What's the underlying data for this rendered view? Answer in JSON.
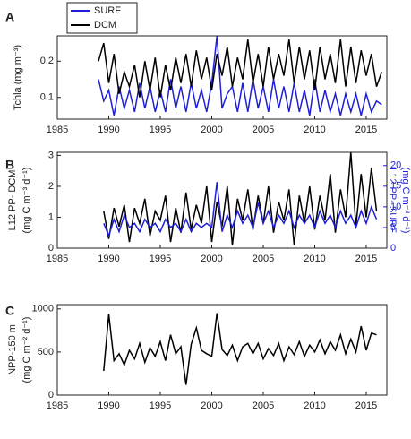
{
  "chart_data": [
    {
      "type": "line",
      "panel": "A",
      "ylabel": "Tchla (mg m⁻³)",
      "legend": "upper left",
      "x": [
        1989.0,
        1989.5,
        1990.0,
        1990.5,
        1991.0,
        1991.5,
        1992.0,
        1992.5,
        1993.0,
        1993.5,
        1994.0,
        1994.5,
        1995.0,
        1995.5,
        1996.0,
        1996.5,
        1997.0,
        1997.5,
        1998.0,
        1998.5,
        1999.0,
        1999.5,
        2000.0,
        2000.5,
        2001.0,
        2001.5,
        2002.0,
        2002.5,
        2003.0,
        2003.5,
        2004.0,
        2004.5,
        2005.0,
        2005.5,
        2006.0,
        2006.5,
        2007.0,
        2007.5,
        2008.0,
        2008.5,
        2009.0,
        2009.5,
        2010.0,
        2010.5,
        2011.0,
        2011.5,
        2012.0,
        2012.5,
        2013.0,
        2013.5,
        2014.0,
        2014.5,
        2015.0,
        2015.5,
        2016.0,
        2016.5
      ],
      "series": [
        {
          "name": "SURF",
          "color": "#1f1fd6",
          "values": [
            0.15,
            0.09,
            0.12,
            0.05,
            0.13,
            0.07,
            0.12,
            0.06,
            0.14,
            0.07,
            0.13,
            0.06,
            0.12,
            0.06,
            0.15,
            0.07,
            0.13,
            0.06,
            0.14,
            0.07,
            0.12,
            0.06,
            0.14,
            0.27,
            0.07,
            0.11,
            0.13,
            0.06,
            0.14,
            0.06,
            0.15,
            0.07,
            0.13,
            0.06,
            0.15,
            0.07,
            0.13,
            0.06,
            0.14,
            0.06,
            0.12,
            0.05,
            0.15,
            0.06,
            0.12,
            0.06,
            0.11,
            0.05,
            0.11,
            0.06,
            0.11,
            0.05,
            0.11,
            0.06,
            0.09,
            0.08
          ]
        },
        {
          "name": "DCM",
          "color": "#000000",
          "values": [
            0.2,
            0.25,
            0.14,
            0.22,
            0.11,
            0.17,
            0.13,
            0.19,
            0.1,
            0.2,
            0.12,
            0.21,
            0.1,
            0.19,
            0.12,
            0.21,
            0.14,
            0.22,
            0.13,
            0.23,
            0.15,
            0.21,
            0.12,
            0.22,
            0.16,
            0.24,
            0.13,
            0.21,
            0.15,
            0.26,
            0.14,
            0.22,
            0.13,
            0.24,
            0.15,
            0.22,
            0.16,
            0.26,
            0.14,
            0.24,
            0.15,
            0.23,
            0.12,
            0.24,
            0.15,
            0.22,
            0.14,
            0.26,
            0.13,
            0.24,
            0.14,
            0.23,
            0.16,
            0.22,
            0.13,
            0.17
          ]
        }
      ],
      "xlim": [
        1985,
        2017
      ],
      "xticks": [
        1985,
        1990,
        1995,
        2000,
        2005,
        2010,
        2015
      ],
      "ylim": [
        0.04,
        0.27
      ],
      "yticks": [
        0.1,
        0.2
      ]
    },
    {
      "type": "line",
      "panel": "B",
      "ylabel": [
        "L12 PP- DCM",
        "(mg C m⁻³ d⁻¹)"
      ],
      "y2label": [
        "L12 PP- SURF",
        "(mg C m⁻³ d⁻¹)"
      ],
      "x": [
        1989.5,
        1990.0,
        1990.5,
        1991.0,
        1991.5,
        1992.0,
        1992.5,
        1993.0,
        1993.5,
        1994.0,
        1994.5,
        1995.0,
        1995.5,
        1996.0,
        1996.5,
        1997.0,
        1997.5,
        1998.0,
        1998.5,
        1999.0,
        1999.5,
        2000.0,
        2000.5,
        2001.0,
        2001.5,
        2002.0,
        2002.5,
        2003.0,
        2003.5,
        2004.0,
        2004.5,
        2005.0,
        2005.5,
        2006.0,
        2006.5,
        2007.0,
        2007.5,
        2008.0,
        2008.5,
        2009.0,
        2009.5,
        2010.0,
        2010.5,
        2011.0,
        2011.5,
        2012.0,
        2012.5,
        2013.0,
        2013.5,
        2014.0,
        2014.5,
        2015.0,
        2015.5,
        2016.0
      ],
      "series": [
        {
          "name": "DCM",
          "color": "#000000",
          "values": [
            1.2,
            0.3,
            1.3,
            0.7,
            1.4,
            0.2,
            1.3,
            0.8,
            1.6,
            0.4,
            1.2,
            0.9,
            1.7,
            0.2,
            1.3,
            0.5,
            1.8,
            0.6,
            1.4,
            0.8,
            2.0,
            0.2,
            1.5,
            0.7,
            2.0,
            0.1,
            1.6,
            0.9,
            1.9,
            0.6,
            1.7,
            0.8,
            2.0,
            0.5,
            1.5,
            0.9,
            1.9,
            0.1,
            1.7,
            0.8,
            2.0,
            0.6,
            1.7,
            0.9,
            2.4,
            0.5,
            1.9,
            1.0,
            3.1,
            0.7,
            2.4,
            1.0,
            2.6,
            1.2
          ]
        },
        {
          "name": "SURF",
          "color": "#1f1fd6",
          "axis": "y2",
          "values": [
            6,
            3,
            7,
            4,
            8,
            5,
            6,
            4,
            7,
            5,
            6,
            4,
            7,
            5,
            6,
            4,
            7,
            4,
            6,
            5,
            6,
            5,
            16,
            4,
            8,
            5,
            9,
            6,
            8,
            5,
            11,
            6,
            9,
            5,
            8,
            6,
            9,
            5,
            8,
            6,
            8,
            5,
            9,
            6,
            8,
            5,
            9,
            6,
            8,
            5,
            9,
            6,
            10,
            7
          ]
        }
      ],
      "xlim": [
        1985,
        2017
      ],
      "xticks": [
        1985,
        1990,
        1995,
        2000,
        2005,
        2010,
        2015
      ],
      "ylim": [
        0,
        3.1
      ],
      "yticks": [
        0,
        1,
        2,
        3
      ],
      "y2lim": [
        0,
        23.2
      ],
      "y2ticks": [
        0,
        5,
        10,
        15,
        20
      ]
    },
    {
      "type": "line",
      "panel": "C",
      "ylabel": [
        "NPP-150 m",
        "(mg C m⁻² d⁻¹)"
      ],
      "x": [
        1989.5,
        1990.0,
        1990.5,
        1991.0,
        1991.5,
        1992.0,
        1992.5,
        1993.0,
        1993.5,
        1994.0,
        1994.5,
        1995.0,
        1995.5,
        1996.0,
        1996.5,
        1997.0,
        1997.5,
        1998.0,
        1998.5,
        1999.0,
        1999.5,
        2000.0,
        2000.5,
        2001.0,
        2001.5,
        2002.0,
        2002.5,
        2003.0,
        2003.5,
        2004.0,
        2004.5,
        2005.0,
        2005.5,
        2006.0,
        2006.5,
        2007.0,
        2007.5,
        2008.0,
        2008.5,
        2009.0,
        2009.5,
        2010.0,
        2010.5,
        2011.0,
        2011.5,
        2012.0,
        2012.5,
        2013.0,
        2013.5,
        2014.0,
        2014.5,
        2015.0,
        2015.5,
        2016.0
      ],
      "series": [
        {
          "name": "NPP",
          "color": "#000000",
          "values": [
            280,
            940,
            400,
            480,
            350,
            520,
            420,
            600,
            380,
            550,
            450,
            620,
            400,
            700,
            480,
            560,
            120,
            590,
            780,
            520,
            480,
            450,
            950,
            530,
            460,
            580,
            400,
            560,
            600,
            480,
            600,
            420,
            540,
            460,
            600,
            400,
            560,
            470,
            620,
            450,
            580,
            500,
            640,
            480,
            620,
            520,
            700,
            480,
            650,
            500,
            800,
            520,
            720,
            700
          ]
        }
      ],
      "xlim": [
        1985,
        2017
      ],
      "xticks": [
        1985,
        1990,
        1995,
        2000,
        2005,
        2010,
        2015
      ],
      "ylim": [
        0,
        1050
      ],
      "yticks": [
        0,
        500,
        1000
      ]
    }
  ]
}
